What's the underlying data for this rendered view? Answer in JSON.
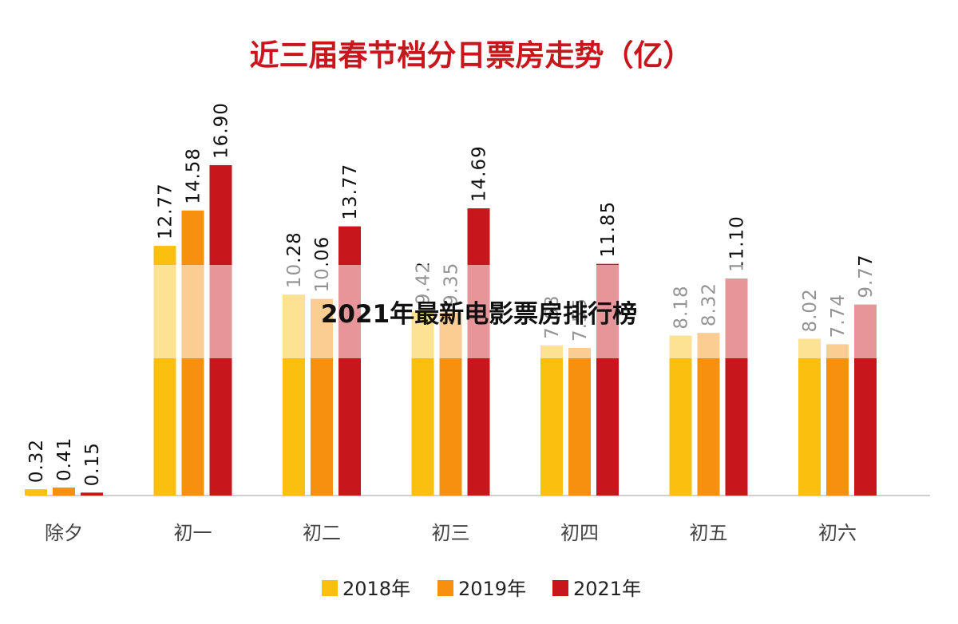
{
  "chart_data": {
    "type": "bar",
    "title": "近三届春节档分日票房走势（亿）",
    "categories": [
      "除夕",
      "初一",
      "初二",
      "初三",
      "初四",
      "初五",
      "初六"
    ],
    "series": [
      {
        "name": "2018年",
        "color": "#fbbf10",
        "values": [
          0.32,
          12.77,
          10.28,
          9.42,
          7.68,
          8.18,
          8.02
        ]
      },
      {
        "name": "2019年",
        "color": "#f7900f",
        "values": [
          0.41,
          14.58,
          10.06,
          9.35,
          7.55,
          8.32,
          7.74
        ]
      },
      {
        "name": "2021年",
        "color": "#c8161d",
        "values": [
          0.15,
          16.9,
          13.77,
          14.69,
          11.85,
          11.1,
          9.77
        ]
      }
    ],
    "value_labels": [
      [
        "0.32",
        "12.77",
        "10.28",
        "9.42",
        "7.68",
        "8.18",
        "8.02"
      ],
      [
        "0.41",
        "14.58",
        "10.06",
        "9.35",
        "7.55",
        "8.32",
        "7.74"
      ],
      [
        "0.15",
        "16.90",
        "13.77",
        "14.69",
        "11.85",
        "11.10",
        "9.77"
      ]
    ],
    "ylim": [
      0,
      18
    ],
    "grid": false,
    "legend_position": "bottom"
  },
  "overlay": {
    "caption": "2021年最新电影票房排行榜"
  }
}
